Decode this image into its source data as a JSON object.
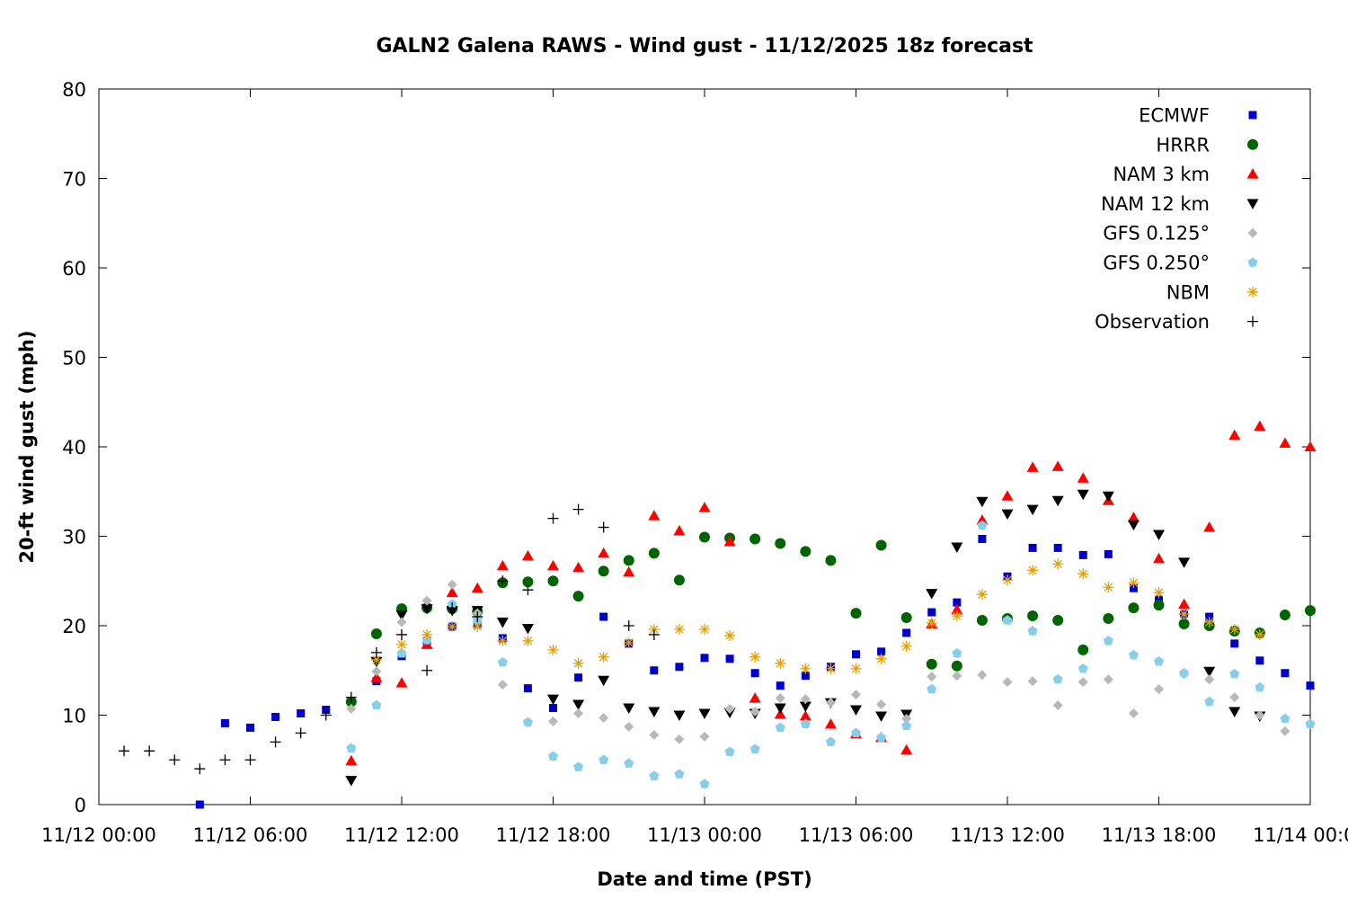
{
  "chart_data": {
    "type": "scatter",
    "title": "GALN2 Galena RAWS - Wind gust - 11/12/2025 18z forecast",
    "xlabel": "Date and time (PST)",
    "ylabel": "20-ft wind gust (mph)",
    "x_unit": "hours",
    "xlim": [
      0,
      48
    ],
    "ylim": [
      0,
      80
    ],
    "grid": false,
    "legend_position": "top-right",
    "x_ticks": [
      {
        "value": 0,
        "label": "11/12 00:00"
      },
      {
        "value": 6,
        "label": "11/12 06:00"
      },
      {
        "value": 12,
        "label": "11/12 12:00"
      },
      {
        "value": 18,
        "label": "11/12 18:00"
      },
      {
        "value": 24,
        "label": "11/13 00:00"
      },
      {
        "value": 30,
        "label": "11/13 06:00"
      },
      {
        "value": 36,
        "label": "11/13 12:00"
      },
      {
        "value": 42,
        "label": "11/13 18:00"
      },
      {
        "value": 48,
        "label": "11/14 00:00"
      }
    ],
    "y_ticks": [
      {
        "value": 0,
        "label": "0"
      },
      {
        "value": 10,
        "label": "10"
      },
      {
        "value": 20,
        "label": "20"
      },
      {
        "value": 30,
        "label": "30"
      },
      {
        "value": 40,
        "label": "40"
      },
      {
        "value": 50,
        "label": "50"
      },
      {
        "value": 60,
        "label": "60"
      },
      {
        "value": 70,
        "label": "70"
      },
      {
        "value": 80,
        "label": "80"
      }
    ],
    "series": [
      {
        "name": "ECMWF",
        "marker": "square",
        "color": "#0000cc",
        "points": [
          [
            4,
            0
          ],
          [
            5,
            9.1
          ],
          [
            6,
            8.6
          ],
          [
            7,
            9.8
          ],
          [
            8,
            10.2
          ],
          [
            9,
            10.6
          ],
          [
            11,
            13.8
          ],
          [
            12,
            16.6
          ],
          [
            13,
            18.3
          ],
          [
            14,
            19.9
          ],
          [
            15,
            20.2
          ],
          [
            16,
            18.6
          ],
          [
            17,
            13
          ],
          [
            18,
            10.8
          ],
          [
            19,
            14.2
          ],
          [
            20,
            21
          ],
          [
            21,
            18
          ],
          [
            22,
            15
          ],
          [
            23,
            15.4
          ],
          [
            24,
            16.4
          ],
          [
            25,
            16.3
          ],
          [
            26,
            14.7
          ],
          [
            27,
            13.3
          ],
          [
            28,
            14.4
          ],
          [
            29,
            15.4
          ],
          [
            30,
            16.8
          ],
          [
            31,
            17.1
          ],
          [
            32,
            19.2
          ],
          [
            33,
            21.5
          ],
          [
            34,
            22.6
          ],
          [
            35,
            29.7
          ],
          [
            36,
            25.5
          ],
          [
            37,
            28.7
          ],
          [
            38,
            28.7
          ],
          [
            39,
            27.9
          ],
          [
            40,
            28
          ],
          [
            41,
            24.2
          ],
          [
            42,
            22.9
          ],
          [
            43,
            21.3
          ],
          [
            44,
            21
          ],
          [
            45,
            18
          ],
          [
            46,
            16.1
          ],
          [
            47,
            14.7
          ],
          [
            48,
            13.3
          ]
        ]
      },
      {
        "name": "HRRR",
        "marker": "circle",
        "color": "#006400",
        "points": [
          [
            10,
            11.5
          ],
          [
            11,
            19.1
          ],
          [
            12,
            21.9
          ],
          [
            13,
            22
          ],
          [
            14,
            21.9
          ],
          [
            15,
            21.6
          ],
          [
            16,
            24.8
          ],
          [
            17,
            24.9
          ],
          [
            18,
            25
          ],
          [
            19,
            23.3
          ],
          [
            20,
            26.1
          ],
          [
            21,
            27.3
          ],
          [
            22,
            28.1
          ],
          [
            23,
            25.1
          ],
          [
            24,
            29.9
          ],
          [
            25,
            29.8
          ],
          [
            26,
            29.7
          ],
          [
            27,
            29.2
          ],
          [
            28,
            28.3
          ],
          [
            29,
            27.3
          ],
          [
            30,
            21.4
          ],
          [
            31,
            29
          ],
          [
            32,
            20.9
          ],
          [
            33,
            15.7
          ],
          [
            34,
            15.5
          ],
          [
            35,
            20.6
          ],
          [
            36,
            20.8
          ],
          [
            37,
            21.1
          ],
          [
            38,
            20.6
          ],
          [
            39,
            17.3
          ],
          [
            40,
            20.8
          ],
          [
            41,
            22
          ],
          [
            42,
            22.3
          ],
          [
            43,
            20.2
          ],
          [
            44,
            20
          ],
          [
            45,
            19.4
          ],
          [
            46,
            19.2
          ],
          [
            47,
            21.2
          ],
          [
            48,
            21.7
          ]
        ]
      },
      {
        "name": "NAM 3 km",
        "marker": "triangle-up",
        "color": "#ff0000",
        "points": [
          [
            10,
            4.9
          ],
          [
            11,
            14.2
          ],
          [
            12,
            13.6
          ],
          [
            13,
            17.9
          ],
          [
            14,
            23.7
          ],
          [
            15,
            24.2
          ],
          [
            16,
            26.7
          ],
          [
            17,
            27.8
          ],
          [
            18,
            26.7
          ],
          [
            19,
            26.5
          ],
          [
            20,
            28.1
          ],
          [
            21,
            26
          ],
          [
            22,
            32.3
          ],
          [
            23,
            30.6
          ],
          [
            24,
            33.2
          ],
          [
            25,
            29.4
          ],
          [
            26,
            11.9
          ],
          [
            27,
            10.1
          ],
          [
            28,
            9.9
          ],
          [
            29,
            9
          ],
          [
            30,
            7.9
          ],
          [
            31,
            7.5
          ],
          [
            32,
            6.1
          ],
          [
            33,
            20.2
          ],
          [
            34,
            21.8
          ],
          [
            35,
            31.8
          ],
          [
            36,
            34.5
          ],
          [
            37,
            37.7
          ],
          [
            38,
            37.8
          ],
          [
            39,
            36.5
          ],
          [
            40,
            34
          ],
          [
            41,
            32.1
          ],
          [
            42,
            27.5
          ],
          [
            43,
            22.4
          ],
          [
            44,
            31
          ],
          [
            45,
            41.3
          ],
          [
            46,
            42.3
          ],
          [
            47,
            40.4
          ],
          [
            48,
            40
          ]
        ]
      },
      {
        "name": "NAM 12 km",
        "marker": "triangle-down",
        "color": "#000000",
        "points": [
          [
            10,
            2.7
          ],
          [
            11,
            16
          ],
          [
            12,
            21.2
          ],
          [
            13,
            21.9
          ],
          [
            14,
            21.7
          ],
          [
            15,
            21.7
          ],
          [
            16,
            20.4
          ],
          [
            17,
            19.7
          ],
          [
            18,
            11.8
          ],
          [
            19,
            11.2
          ],
          [
            20,
            13.9
          ],
          [
            21,
            10.8
          ],
          [
            22,
            10.4
          ],
          [
            23,
            10
          ],
          [
            24,
            10.2
          ],
          [
            25,
            10.3
          ],
          [
            26,
            10.2
          ],
          [
            27,
            10.8
          ],
          [
            28,
            11
          ],
          [
            29,
            11.4
          ],
          [
            30,
            10.6
          ],
          [
            31,
            9.9
          ],
          [
            32,
            10.1
          ],
          [
            33,
            23.6
          ],
          [
            34,
            28.8
          ],
          [
            35,
            33.9
          ],
          [
            36,
            32.5
          ],
          [
            37,
            33
          ],
          [
            38,
            34
          ],
          [
            39,
            34.7
          ],
          [
            40,
            34.5
          ],
          [
            41,
            31.3
          ],
          [
            42,
            30.2
          ],
          [
            43,
            27.1
          ],
          [
            44,
            14.9
          ],
          [
            45,
            10.4
          ],
          [
            46,
            9.9
          ]
        ]
      },
      {
        "name": "GFS 0.125°",
        "marker": "diamond",
        "color": "#b8b8b8",
        "points": [
          [
            10,
            10.7
          ],
          [
            11,
            14.9
          ],
          [
            12,
            20.4
          ],
          [
            13,
            22.8
          ],
          [
            14,
            24.6
          ],
          [
            15,
            21.4
          ],
          [
            16,
            13.4
          ],
          [
            17,
            9.2
          ],
          [
            18,
            9.3
          ],
          [
            19,
            10.2
          ],
          [
            20,
            9.7
          ],
          [
            21,
            8.7
          ],
          [
            22,
            7.8
          ],
          [
            23,
            7.3
          ],
          [
            24,
            7.6
          ],
          [
            25,
            10.7
          ],
          [
            26,
            10.4
          ],
          [
            27,
            11.9
          ],
          [
            28,
            11.8
          ],
          [
            29,
            11.4
          ],
          [
            30,
            12.3
          ],
          [
            31,
            11.2
          ],
          [
            32,
            9.6
          ],
          [
            33,
            14.3
          ],
          [
            34,
            14.4
          ],
          [
            35,
            14.5
          ],
          [
            36,
            13.7
          ],
          [
            37,
            13.8
          ],
          [
            38,
            11.1
          ],
          [
            39,
            13.7
          ],
          [
            40,
            14
          ],
          [
            41,
            10.2
          ],
          [
            42,
            12.9
          ],
          [
            43,
            14.6
          ],
          [
            44,
            14
          ],
          [
            45,
            12
          ],
          [
            46,
            10
          ],
          [
            47,
            8.2
          ],
          [
            48,
            9
          ]
        ]
      },
      {
        "name": "GFS 0.250°",
        "marker": "pentagon",
        "color": "#87ceeb",
        "points": [
          [
            10,
            6.3
          ],
          [
            11,
            11.1
          ],
          [
            12,
            16.9
          ],
          [
            13,
            18.4
          ],
          [
            14,
            22.4
          ],
          [
            15,
            20.6
          ],
          [
            16,
            15.9
          ],
          [
            17,
            9.2
          ],
          [
            18,
            5.4
          ],
          [
            19,
            4.2
          ],
          [
            20,
            5
          ],
          [
            21,
            4.6
          ],
          [
            22,
            3.2
          ],
          [
            23,
            3.4
          ],
          [
            24,
            2.3
          ],
          [
            25,
            5.9
          ],
          [
            26,
            6.2
          ],
          [
            27,
            8.6
          ],
          [
            28,
            9
          ],
          [
            29,
            7
          ],
          [
            30,
            8
          ],
          [
            31,
            7.5
          ],
          [
            32,
            8.8
          ],
          [
            33,
            12.9
          ],
          [
            34,
            16.9
          ],
          [
            35,
            31.2
          ],
          [
            36,
            20.6
          ],
          [
            37,
            19.4
          ],
          [
            38,
            14
          ],
          [
            39,
            15.2
          ],
          [
            40,
            18.3
          ],
          [
            41,
            16.7
          ],
          [
            42,
            16
          ],
          [
            43,
            14.7
          ],
          [
            44,
            11.5
          ],
          [
            45,
            14.6
          ],
          [
            46,
            13.1
          ],
          [
            47,
            9.6
          ],
          [
            48,
            9
          ]
        ]
      },
      {
        "name": "NBM",
        "marker": "asterisk",
        "color": "#e69f00",
        "points": [
          [
            11,
            16.2
          ],
          [
            12,
            17.9
          ],
          [
            13,
            19
          ],
          [
            14,
            19.9
          ],
          [
            15,
            19.9
          ],
          [
            16,
            18.3
          ],
          [
            17,
            18.3
          ],
          [
            18,
            17.3
          ],
          [
            19,
            15.8
          ],
          [
            20,
            16.5
          ],
          [
            21,
            18.1
          ],
          [
            22,
            19.6
          ],
          [
            23,
            19.6
          ],
          [
            24,
            19.6
          ],
          [
            25,
            18.9
          ],
          [
            26,
            16.5
          ],
          [
            27,
            15.8
          ],
          [
            28,
            15.2
          ],
          [
            29,
            15.2
          ],
          [
            30,
            15.2
          ],
          [
            31,
            16.3
          ],
          [
            32,
            17.7
          ],
          [
            33,
            20.3
          ],
          [
            34,
            21.1
          ],
          [
            35,
            23.5
          ],
          [
            36,
            25.1
          ],
          [
            37,
            26.2
          ],
          [
            38,
            26.9
          ],
          [
            39,
            25.8
          ],
          [
            40,
            24.3
          ],
          [
            41,
            24.8
          ],
          [
            42,
            23.7
          ],
          [
            43,
            21.3
          ],
          [
            44,
            20.4
          ],
          [
            45,
            19.6
          ],
          [
            46,
            19
          ]
        ]
      },
      {
        "name": "Observation",
        "marker": "plus",
        "color": "#000000",
        "points": [
          [
            1,
            6
          ],
          [
            2,
            6
          ],
          [
            3,
            5
          ],
          [
            4,
            4
          ],
          [
            5,
            5
          ],
          [
            6,
            5
          ],
          [
            7,
            7
          ],
          [
            8,
            8
          ],
          [
            9,
            10
          ],
          [
            10,
            12
          ],
          [
            11,
            17
          ],
          [
            12,
            19
          ],
          [
            13,
            15
          ],
          [
            14,
            22
          ],
          [
            15,
            21
          ],
          [
            16,
            25
          ],
          [
            17,
            24
          ],
          [
            18,
            32
          ],
          [
            19,
            33
          ],
          [
            20,
            31
          ],
          [
            21,
            20
          ],
          [
            22,
            19
          ]
        ]
      }
    ]
  }
}
